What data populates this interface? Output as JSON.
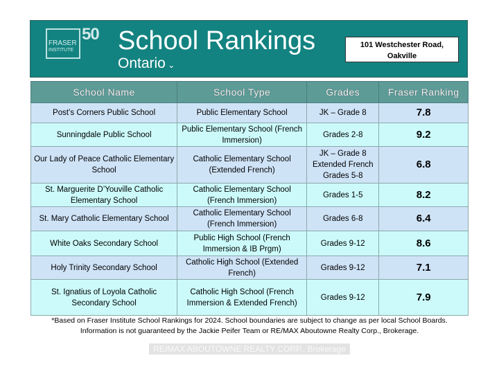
{
  "header": {
    "logo_text": "FRASER",
    "logo_sub": "INSTITUTE",
    "anniversary": "50",
    "title": "School Rankings",
    "subtitle": "Ontario",
    "subtitle_chevron": "chevron-down-icon",
    "address": "101 Westchester Road, Oakville"
  },
  "table": {
    "columns": [
      "School Name",
      "School Type",
      "Grades",
      "Fraser Ranking"
    ],
    "rows": [
      {
        "name": "Post’s Corners Public School",
        "type": "Public Elementary School",
        "grades": "JK – Grade 8",
        "ranking": "7.8"
      },
      {
        "name": "Sunningdale Public School",
        "type": "Public Elementary School (French Immersion)",
        "grades": "Grades 2-8",
        "ranking": "9.2"
      },
      {
        "name": "Our Lady of Peace Catholic Elementary School",
        "type": "Catholic Elementary School (Extended French)",
        "grades": "JK – Grade 8 Extended French Grades 5-8",
        "ranking": "6.8"
      },
      {
        "name": "St. Marguerite D’Youville Catholic Elementary School",
        "type": "Catholic Elementary School (French Immersion)",
        "grades": "Grades 1-5",
        "ranking": "8.2"
      },
      {
        "name": "St. Mary Catholic Elementary School",
        "type": "Catholic Elementary School (French Immersion)",
        "grades": "Grades 6-8",
        "ranking": "6.4"
      },
      {
        "name": "White Oaks Secondary School",
        "type": "Public High School (French Immersion & IB Prgm)",
        "grades": "Grades 9-12",
        "ranking": "8.6"
      },
      {
        "name": "Holy Trinity Secondary School",
        "type": "Catholic High School (Extended French)",
        "grades": "Grades 9-12",
        "ranking": "7.1"
      },
      {
        "name": "St. Ignatius of Loyola Catholic Secondary School",
        "type": "Catholic High School (French Immersion & Extended French)",
        "grades": "Grades 9-12",
        "ranking": "7.9"
      }
    ]
  },
  "footnote": {
    "line1": "*Based on Fraser Institute School Rankings for 2024. School boundaries are subject to change as per local School Boards.",
    "line2": "Information is not guaranteed by the Jackie Peifer Team or RE/MAX Aboutowne Realty Corp., Brokerage."
  },
  "watermark": "RE/MAX ABOUTOWNE REALTY CORP., Brokerage",
  "colors": {
    "banner": "#138381",
    "header_row": "#5d9b97",
    "row_a": "#cfe3f7",
    "row_b": "#ccfafa"
  }
}
